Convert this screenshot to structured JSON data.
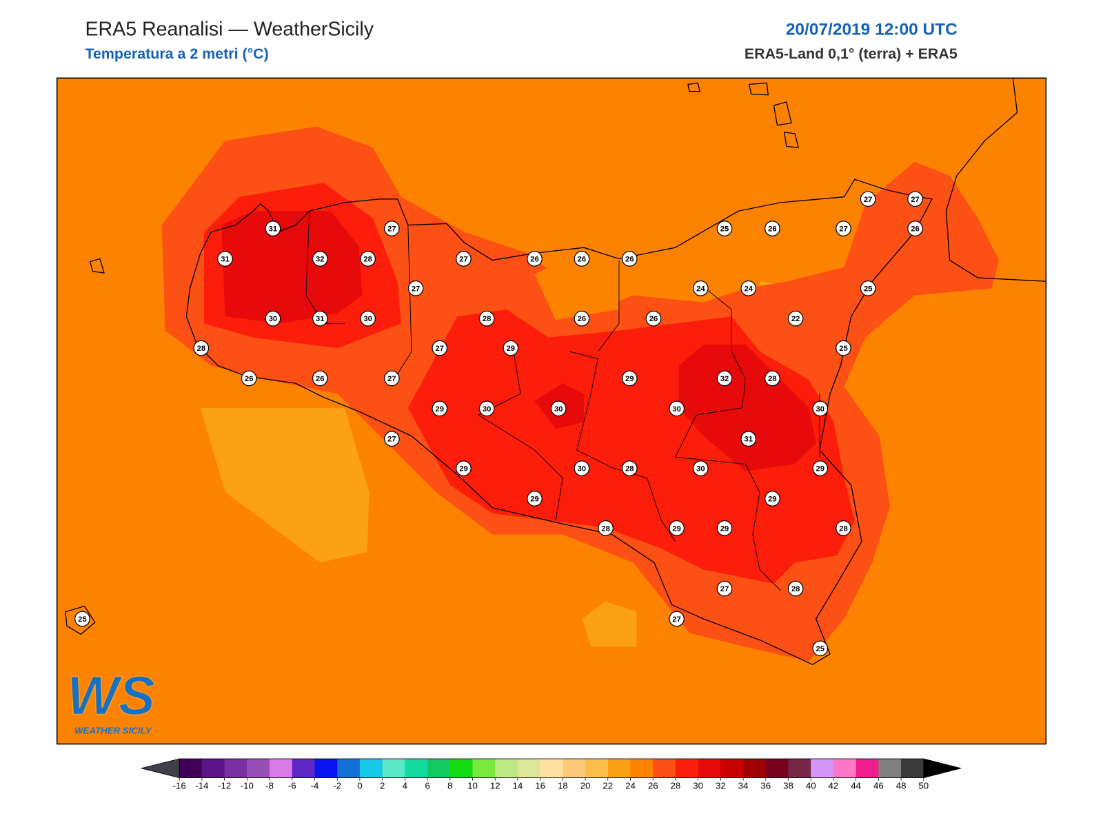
{
  "header": {
    "title": "ERA5 Reanalisi — WeatherSicily",
    "subtitle": "Temperatura a 2 metri (°C)",
    "datetime": "20/07/2019 12:00 UTC",
    "source": "ERA5-Land 0,1° (terra) + ERA5"
  },
  "map": {
    "stations": [
      31,
      27,
      31,
      32,
      28,
      27,
      26,
      26,
      26,
      25,
      26,
      27,
      26,
      27,
      27,
      27,
      24,
      24,
      25,
      30,
      31,
      30,
      28,
      26,
      26,
      22,
      28,
      27,
      29,
      25,
      26,
      26,
      27,
      29,
      32,
      28,
      29,
      30,
      30,
      30,
      30,
      27,
      31,
      29,
      30,
      28,
      30,
      29,
      29,
      29,
      28,
      29,
      29,
      28,
      27,
      28,
      27,
      25,
      25
    ]
  },
  "colorbar": {
    "ticks": [
      -16,
      -14,
      -12,
      -10,
      -8,
      -6,
      -4,
      -2,
      0,
      2,
      4,
      6,
      8,
      10,
      12,
      14,
      16,
      18,
      20,
      22,
      24,
      26,
      28,
      30,
      32,
      34,
      36,
      38,
      40,
      42,
      44,
      46,
      48,
      50
    ],
    "colors": [
      "#400058",
      "#5c1488",
      "#7b2fa2",
      "#9a4fb8",
      "#d97ae8",
      "#5e28c8",
      "#0a14f0",
      "#1470d8",
      "#14c8e6",
      "#5ae8c8",
      "#14dca0",
      "#14c864",
      "#14dc14",
      "#7ae83c",
      "#bee882",
      "#dce696",
      "#fee0a0",
      "#fcc878",
      "#fcbe46",
      "#fca014",
      "#fc8200",
      "#fc5014",
      "#fc1e0a",
      "#e60a0a",
      "#c80000",
      "#a00000",
      "#78001e",
      "#782846",
      "#d296fa",
      "#ff78c8",
      "#f01e8c",
      "#808080",
      "#3a3a3a"
    ],
    "under_color": "#404048",
    "over_color": "#000000"
  },
  "logo": {
    "mark": "WS",
    "text": "WEATHER SICILY"
  }
}
